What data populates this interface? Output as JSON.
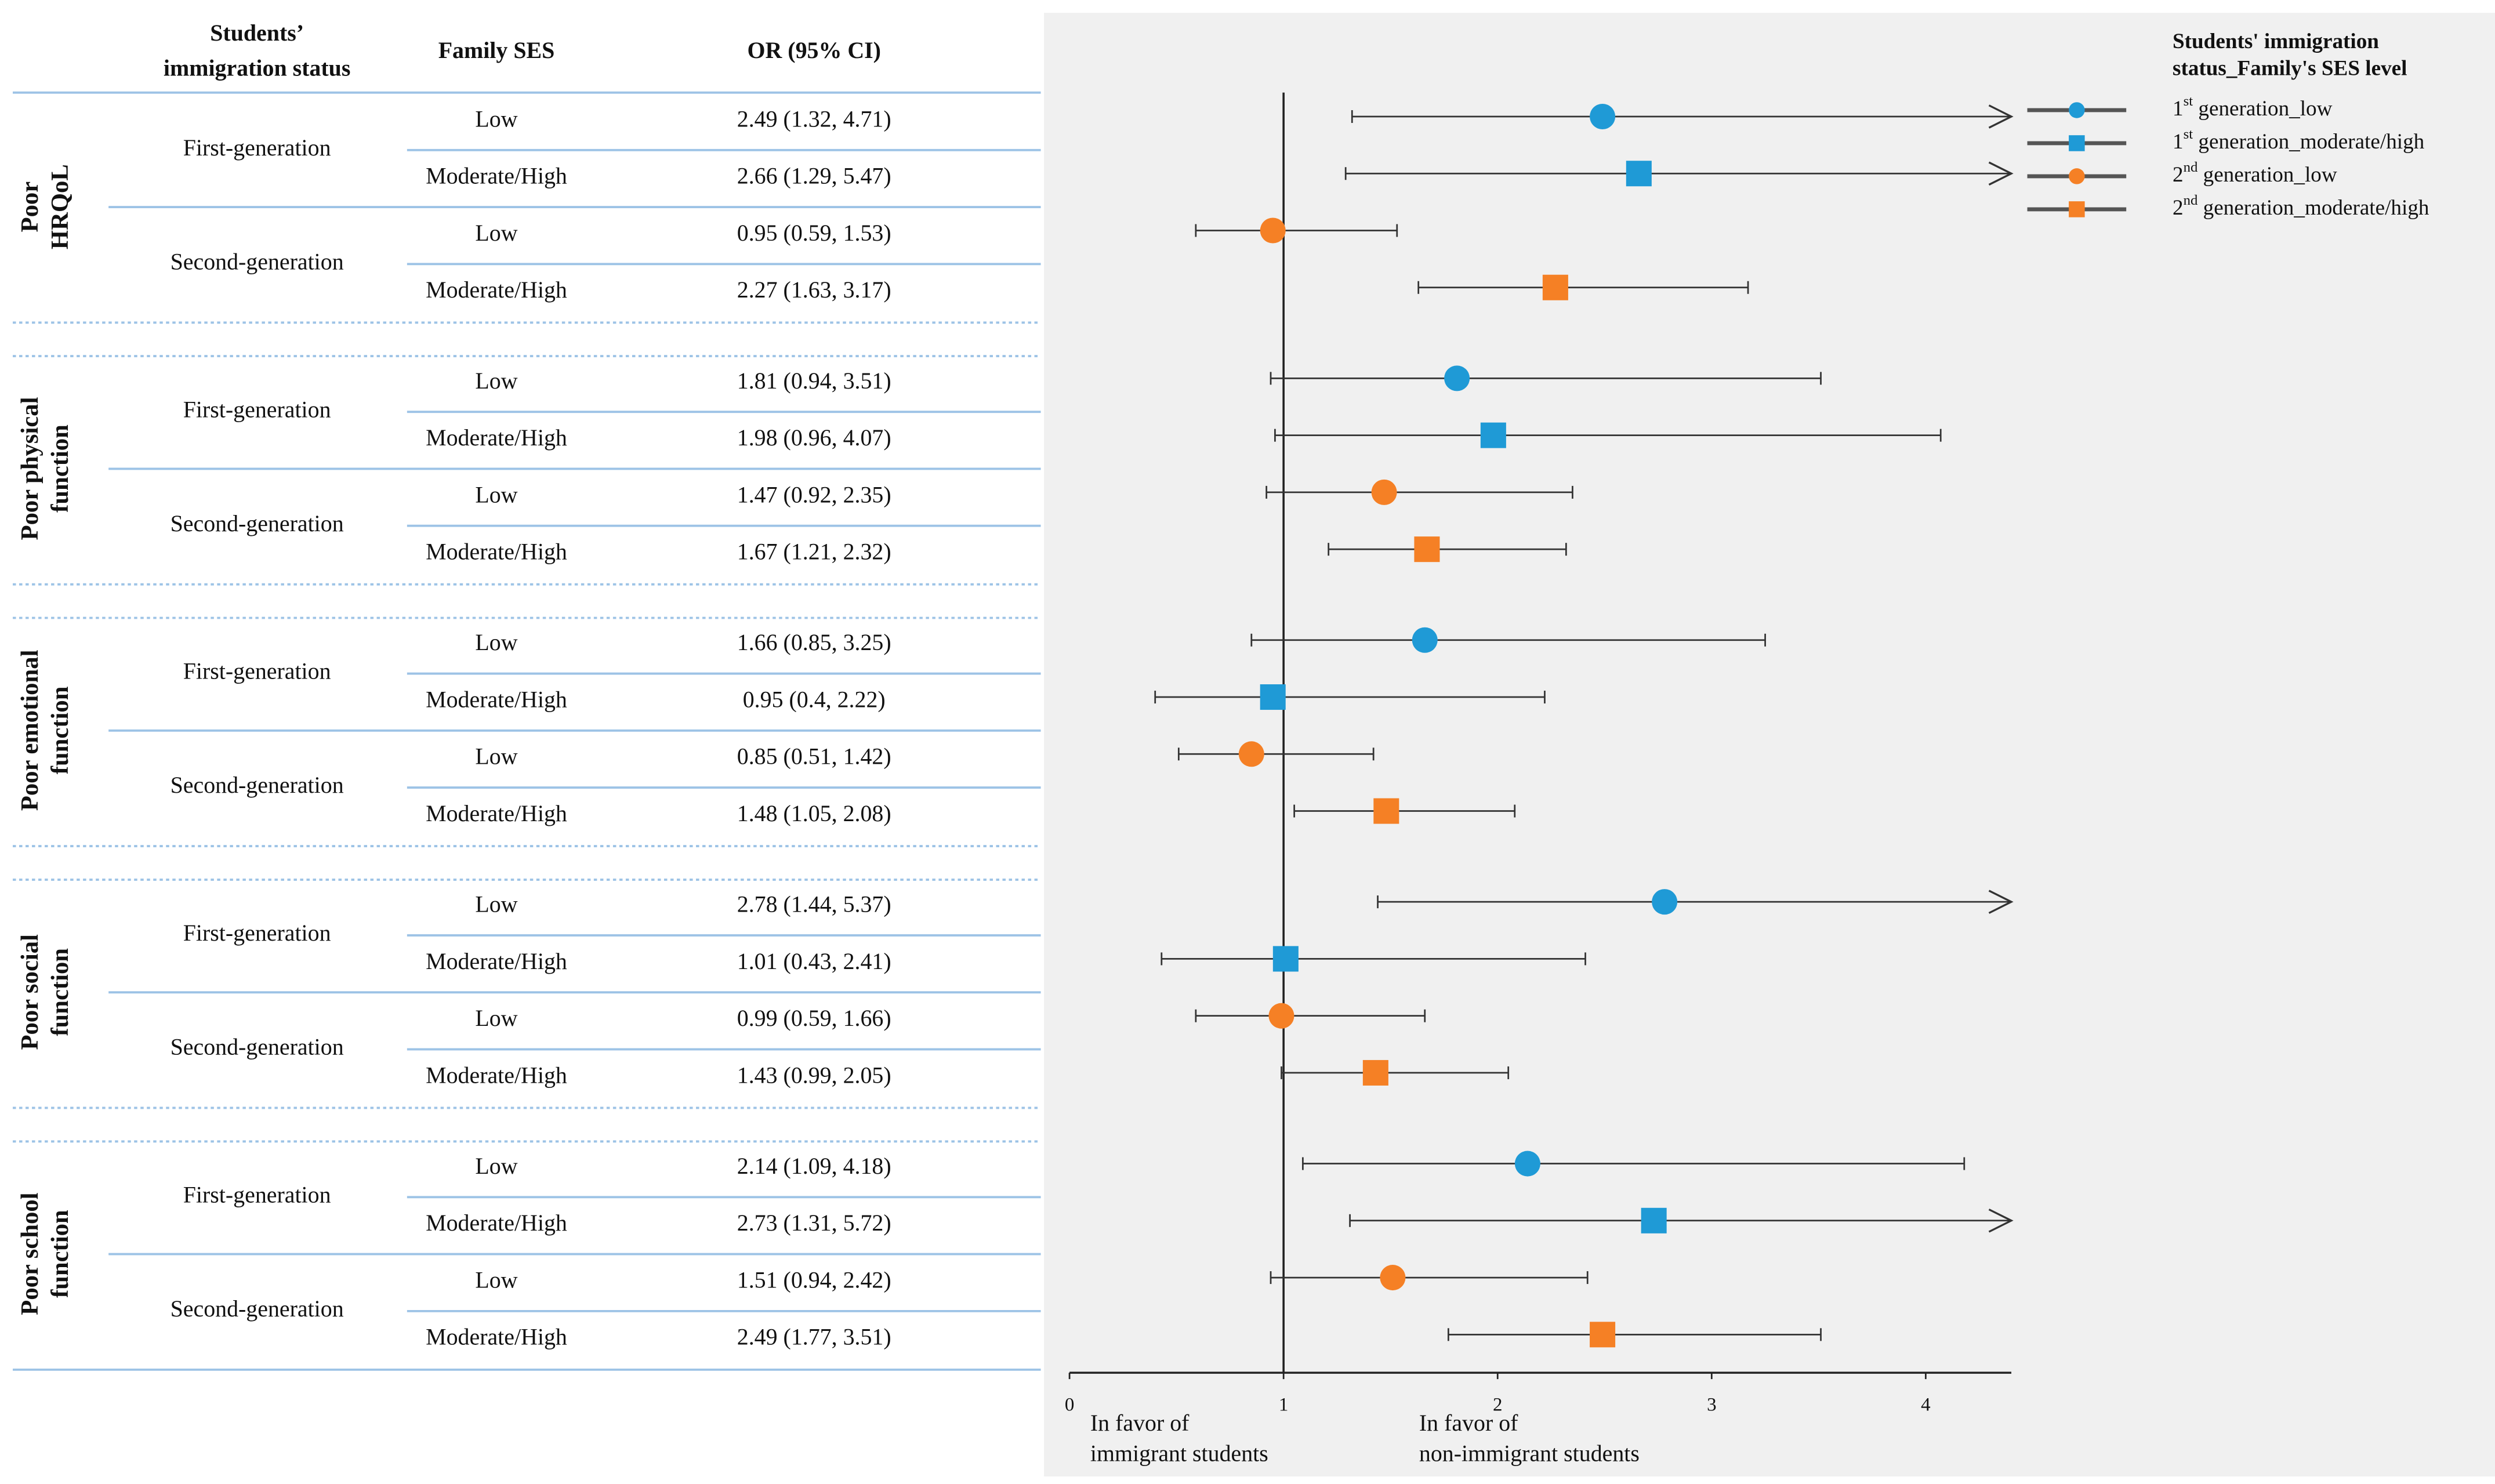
{
  "chart_data": {
    "type": "forest",
    "columns": [
      [
        "Students’",
        "immigration status"
      ],
      "Family SES",
      "OR (95% CI)"
    ],
    "legend_title": [
      "Students' immigration",
      "status_Family's SES level"
    ],
    "series": [
      {
        "name": "1st generation_low",
        "color": "#1f9ad6",
        "marker": "circle"
      },
      {
        "name": "1st generation_moderate/high",
        "color": "#1f9ad6",
        "marker": "square"
      },
      {
        "name": "2nd generation_low",
        "color": "#f58025",
        "marker": "circle"
      },
      {
        "name": "2nd generation_moderate/high",
        "color": "#f58025",
        "marker": "square"
      }
    ],
    "xlim": [
      0,
      4.4
    ],
    "xticks": [
      0,
      1,
      2,
      3,
      4
    ],
    "reference_line": 1,
    "annotations": [
      [
        "In favor of",
        "immigrant students"
      ],
      [
        "In favor of",
        "non-immigrant students"
      ]
    ],
    "outcomes": [
      {
        "name": [
          "Poor",
          "HRQoL"
        ],
        "groups": [
          {
            "status": "First-generation",
            "rows": [
              {
                "ses": "Low",
                "label": "2.49 (1.32, 4.71)",
                "or": 2.49,
                "ci": [
                  1.32,
                  4.71
                ]
              },
              {
                "ses": "Moderate/High",
                "label": "2.66 (1.29, 5.47)",
                "or": 2.66,
                "ci": [
                  1.29,
                  5.47
                ]
              }
            ]
          },
          {
            "status": "Second-generation",
            "rows": [
              {
                "ses": "Low",
                "label": "0.95 (0.59, 1.53)",
                "or": 0.95,
                "ci": [
                  0.59,
                  1.53
                ]
              },
              {
                "ses": "Moderate/High",
                "label": "2.27 (1.63, 3.17)",
                "or": 2.27,
                "ci": [
                  1.63,
                  3.17
                ]
              }
            ]
          }
        ]
      },
      {
        "name": [
          "Poor physical",
          "function"
        ],
        "groups": [
          {
            "status": "First-generation",
            "rows": [
              {
                "ses": "Low",
                "label": "1.81 (0.94, 3.51)",
                "or": 1.81,
                "ci": [
                  0.94,
                  3.51
                ]
              },
              {
                "ses": "Moderate/High",
                "label": "1.98 (0.96, 4.07)",
                "or": 1.98,
                "ci": [
                  0.96,
                  4.07
                ]
              }
            ]
          },
          {
            "status": "Second-generation",
            "rows": [
              {
                "ses": "Low",
                "label": "1.47 (0.92, 2.35)",
                "or": 1.47,
                "ci": [
                  0.92,
                  2.35
                ]
              },
              {
                "ses": "Moderate/High",
                "label": "1.67 (1.21, 2.32)",
                "or": 1.67,
                "ci": [
                  1.21,
                  2.32
                ]
              }
            ]
          }
        ]
      },
      {
        "name": [
          "Poor emotional",
          "function"
        ],
        "groups": [
          {
            "status": "First-generation",
            "rows": [
              {
                "ses": "Low",
                "label": "1.66 (0.85, 3.25)",
                "or": 1.66,
                "ci": [
                  0.85,
                  3.25
                ]
              },
              {
                "ses": "Moderate/High",
                "label": "0.95 (0.4, 2.22)",
                "or": 0.95,
                "ci": [
                  0.4,
                  2.22
                ]
              }
            ]
          },
          {
            "status": "Second-generation",
            "rows": [
              {
                "ses": "Low",
                "label": "0.85 (0.51, 1.42)",
                "or": 0.85,
                "ci": [
                  0.51,
                  1.42
                ]
              },
              {
                "ses": "Moderate/High",
                "label": "1.48 (1.05, 2.08)",
                "or": 1.48,
                "ci": [
                  1.05,
                  2.08
                ]
              }
            ]
          }
        ]
      },
      {
        "name": [
          "Poor social",
          "function"
        ],
        "groups": [
          {
            "status": "First-generation",
            "rows": [
              {
                "ses": "Low",
                "label": "2.78 (1.44, 5.37)",
                "or": 2.78,
                "ci": [
                  1.44,
                  5.37
                ]
              },
              {
                "ses": "Moderate/High",
                "label": "1.01 (0.43, 2.41)",
                "or": 1.01,
                "ci": [
                  0.43,
                  2.41
                ]
              }
            ]
          },
          {
            "status": "Second-generation",
            "rows": [
              {
                "ses": "Low",
                "label": "0.99 (0.59, 1.66)",
                "or": 0.99,
                "ci": [
                  0.59,
                  1.66
                ]
              },
              {
                "ses": "Moderate/High",
                "label": "1.43 (0.99, 2.05)",
                "or": 1.43,
                "ci": [
                  0.99,
                  2.05
                ]
              }
            ]
          }
        ]
      },
      {
        "name": [
          "Poor school",
          "function"
        ],
        "groups": [
          {
            "status": "First-generation",
            "rows": [
              {
                "ses": "Low",
                "label": "2.14 (1.09, 4.18)",
                "or": 2.14,
                "ci": [
                  1.09,
                  4.18
                ]
              },
              {
                "ses": "Moderate/High",
                "label": "2.73 (1.31, 5.72)",
                "or": 2.73,
                "ci": [
                  1.31,
                  5.72
                ]
              }
            ]
          },
          {
            "status": "Second-generation",
            "rows": [
              {
                "ses": "Low",
                "label": "1.51 (0.94, 2.42)",
                "or": 1.51,
                "ci": [
                  0.94,
                  2.42
                ]
              },
              {
                "ses": "Moderate/High",
                "label": "2.49 (1.77, 3.51)",
                "or": 2.49,
                "ci": [
                  1.77,
                  3.51
                ]
              }
            ]
          }
        ]
      }
    ]
  }
}
